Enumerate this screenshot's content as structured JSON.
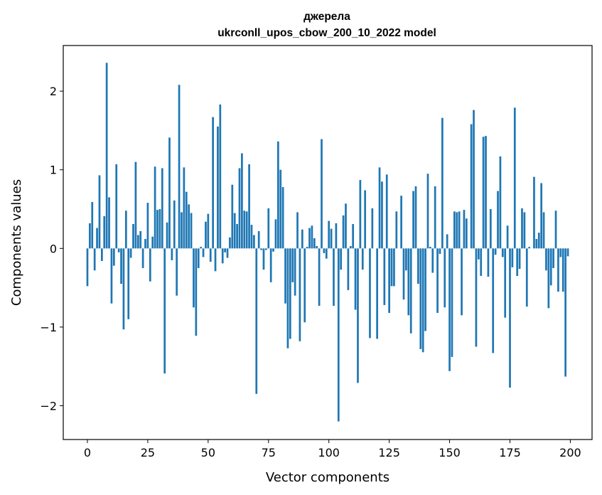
{
  "chart_data": {
    "type": "bar",
    "title": "джерела",
    "subtitle": "ukrconll_upos_cbow_200_10_2022 model",
    "xlabel": "Vector components",
    "ylabel": "Components values",
    "xlim": [
      -10,
      209
    ],
    "ylim": [
      -2.43,
      2.58
    ],
    "xticks": [
      0,
      25,
      50,
      75,
      100,
      125,
      150,
      175,
      200
    ],
    "xtick_labels": [
      "0",
      "25",
      "50",
      "75",
      "100",
      "125",
      "150",
      "175",
      "200"
    ],
    "yticks": [
      -2,
      -1,
      0,
      1,
      2
    ],
    "ytick_labels": [
      "−2",
      "−1",
      "0",
      "1",
      "2"
    ],
    "grid": false,
    "bar_color": "#1f77b4",
    "x": [
      0,
      1,
      2,
      3,
      4,
      5,
      6,
      7,
      8,
      9,
      10,
      11,
      12,
      13,
      14,
      15,
      16,
      17,
      18,
      19,
      20,
      21,
      22,
      23,
      24,
      25,
      26,
      27,
      28,
      29,
      30,
      31,
      32,
      33,
      34,
      35,
      36,
      37,
      38,
      39,
      40,
      41,
      42,
      43,
      44,
      45,
      46,
      47,
      48,
      49,
      50,
      51,
      52,
      53,
      54,
      55,
      56,
      57,
      58,
      59,
      60,
      61,
      62,
      63,
      64,
      65,
      66,
      67,
      68,
      69,
      70,
      71,
      72,
      73,
      74,
      75,
      76,
      77,
      78,
      79,
      80,
      81,
      82,
      83,
      84,
      85,
      86,
      87,
      88,
      89,
      90,
      91,
      92,
      93,
      94,
      95,
      96,
      97,
      98,
      99,
      100,
      101,
      102,
      103,
      104,
      105,
      106,
      107,
      108,
      109,
      110,
      111,
      112,
      113,
      114,
      115,
      116,
      117,
      118,
      119,
      120,
      121,
      122,
      123,
      124,
      125,
      126,
      127,
      128,
      129,
      130,
      131,
      132,
      133,
      134,
      135,
      136,
      137,
      138,
      139,
      140,
      141,
      142,
      143,
      144,
      145,
      146,
      147,
      148,
      149,
      150,
      151,
      152,
      153,
      154,
      155,
      156,
      157,
      158,
      159,
      160,
      161,
      162,
      163,
      164,
      165,
      166,
      167,
      168,
      169,
      170,
      171,
      172,
      173,
      174,
      175,
      176,
      177,
      178,
      179,
      180,
      181,
      182,
      183,
      184,
      185,
      186,
      187,
      188,
      189,
      190,
      191,
      192,
      193,
      194,
      195,
      196,
      197,
      198,
      199
    ],
    "values": [
      -0.48,
      0.32,
      0.59,
      -0.28,
      0.26,
      0.93,
      -0.16,
      0.41,
      2.36,
      0.65,
      -0.7,
      -0.22,
      1.07,
      -0.05,
      -0.45,
      -1.03,
      0.48,
      -0.9,
      -0.12,
      0.31,
      1.1,
      0.17,
      0.22,
      -0.25,
      0.12,
      0.58,
      -0.42,
      0.15,
      1.04,
      0.49,
      0.5,
      1.02,
      -1.59,
      0.33,
      1.41,
      -0.15,
      0.61,
      -0.6,
      2.08,
      0.46,
      1.03,
      0.72,
      0.56,
      0.45,
      -0.75,
      -1.11,
      -0.25,
      0.02,
      -0.11,
      0.34,
      0.44,
      -0.17,
      1.67,
      -0.29,
      1.55,
      1.83,
      -0.19,
      -0.05,
      -0.12,
      0.14,
      0.81,
      0.45,
      0.31,
      1.02,
      1.21,
      0.48,
      0.47,
      1.07,
      0.3,
      0.17,
      -1.85,
      0.22,
      -0.02,
      -0.27,
      -0.02,
      0.51,
      -0.43,
      -0.04,
      0.37,
      1.36,
      1.0,
      0.78,
      -0.7,
      -1.27,
      -1.15,
      -0.43,
      -0.6,
      0.46,
      -1.18,
      0.24,
      -0.94,
      0.02,
      0.26,
      0.29,
      0.13,
      0.03,
      -0.73,
      1.39,
      -0.06,
      -0.13,
      0.35,
      0.25,
      -0.73,
      0.32,
      -2.2,
      -0.27,
      0.42,
      0.57,
      -0.53,
      0.03,
      0.31,
      -0.78,
      -1.71,
      0.87,
      -0.27,
      0.74,
      0.0,
      -1.14,
      0.51,
      0.0,
      -1.15,
      1.03,
      0.85,
      -0.72,
      0.94,
      -0.82,
      -0.48,
      -0.48,
      0.47,
      0.0,
      0.67,
      -0.65,
      -0.28,
      -0.85,
      -1.08,
      0.73,
      0.79,
      -0.45,
      -1.28,
      -1.32,
      -1.05,
      0.95,
      0.02,
      -0.31,
      0.79,
      -0.82,
      -0.07,
      1.66,
      -0.75,
      0.18,
      -1.56,
      -1.38,
      0.47,
      0.46,
      0.47,
      -0.85,
      0.49,
      0.38,
      0.0,
      1.58,
      1.76,
      -1.25,
      -0.14,
      -0.35,
      1.42,
      1.43,
      -0.36,
      0.5,
      -1.33,
      -0.08,
      0.73,
      1.17,
      -0.11,
      -0.88,
      0.29,
      -1.77,
      -0.24,
      1.79,
      -0.35,
      -0.26,
      0.51,
      0.46,
      -0.74,
      0.02,
      0.0,
      0.91,
      0.12,
      0.2,
      0.83,
      0.46,
      -0.28,
      -0.76,
      -0.47,
      -0.25,
      0.48,
      -0.55,
      -0.11,
      -0.55,
      -1.63,
      -0.1
    ]
  }
}
